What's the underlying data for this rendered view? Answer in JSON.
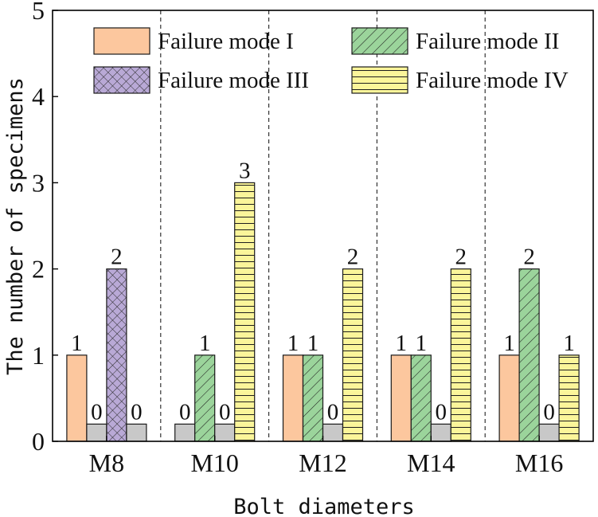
{
  "chart_data": {
    "type": "bar",
    "title": "",
    "xlabel": "Bolt diameters",
    "ylabel": "The number of specimens",
    "categories": [
      "M8",
      "M10",
      "M12",
      "M14",
      "M16"
    ],
    "ylim": [
      0,
      5
    ],
    "yticks": [
      0,
      1,
      2,
      3,
      4,
      5
    ],
    "zero_bar_marker_value": 0.2,
    "grid": "dashed vertical separators between groups",
    "legend_position": "top",
    "series": [
      {
        "name": "Failure mode I",
        "values": [
          1,
          0,
          1,
          1,
          1
        ],
        "color": "#fcc79e",
        "pattern": "solid"
      },
      {
        "name": "Failure mode II",
        "values": [
          0,
          1,
          1,
          1,
          2
        ],
        "color": "#9bd49b",
        "pattern": "diagonal"
      },
      {
        "name": "Failure mode III",
        "values": [
          2,
          0,
          0,
          0,
          0
        ],
        "color": "#b9a9d6",
        "pattern": "crosshatch"
      },
      {
        "name": "Failure mode IV",
        "values": [
          0,
          3,
          2,
          2,
          1
        ],
        "color": "#fbf59a",
        "pattern": "horizontal"
      }
    ],
    "zero_bar_color": "#c8c8c8"
  }
}
